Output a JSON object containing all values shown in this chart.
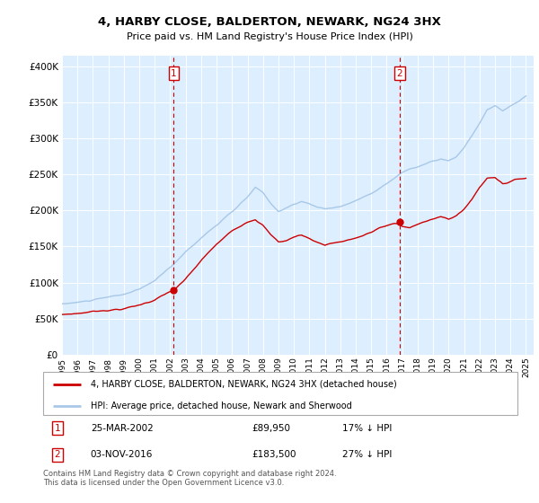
{
  "title": "4, HARBY CLOSE, BALDERTON, NEWARK, NG24 3HX",
  "subtitle": "Price paid vs. HM Land Registry's House Price Index (HPI)",
  "ylabel_ticks": [
    "£0",
    "£50K",
    "£100K",
    "£150K",
    "£200K",
    "£250K",
    "£300K",
    "£350K",
    "£400K"
  ],
  "ytick_values": [
    0,
    50000,
    100000,
    150000,
    200000,
    250000,
    300000,
    350000,
    400000
  ],
  "ylim": [
    0,
    415000
  ],
  "xlim_start": 1995.0,
  "xlim_end": 2025.5,
  "hpi_color": "#a8c8e8",
  "price_color": "#cc0000",
  "marker1_date": 2002.23,
  "marker1_label": "1",
  "marker1_price": 89950,
  "marker2_date": 2016.84,
  "marker2_label": "2",
  "marker2_price": 183500,
  "legend_line1": "4, HARBY CLOSE, BALDERTON, NEWARK, NG24 3HX (detached house)",
  "legend_line2": "HPI: Average price, detached house, Newark and Sherwood",
  "table_row1": [
    "1",
    "25-MAR-2002",
    "£89,950",
    "17% ↓ HPI"
  ],
  "table_row2": [
    "2",
    "03-NOV-2016",
    "£183,500",
    "27% ↓ HPI"
  ],
  "footnote": "Contains HM Land Registry data © Crown copyright and database right 2024.\nThis data is licensed under the Open Government Licence v3.0.",
  "background_color": "#ffffff",
  "plot_bg_color": "#ddeeff",
  "grid_color": "#ffffff",
  "hpi_anchors": [
    [
      1995.0,
      70000
    ],
    [
      1996.0,
      72000
    ],
    [
      1997.0,
      75000
    ],
    [
      1998.0,
      78000
    ],
    [
      1999.0,
      82000
    ],
    [
      2000.0,
      88000
    ],
    [
      2001.0,
      100000
    ],
    [
      2002.0,
      118000
    ],
    [
      2003.0,
      140000
    ],
    [
      2004.0,
      160000
    ],
    [
      2005.0,
      178000
    ],
    [
      2006.0,
      195000
    ],
    [
      2007.0,
      215000
    ],
    [
      2007.5,
      228000
    ],
    [
      2008.0,
      220000
    ],
    [
      2008.5,
      205000
    ],
    [
      2009.0,
      195000
    ],
    [
      2009.5,
      200000
    ],
    [
      2010.0,
      205000
    ],
    [
      2010.5,
      208000
    ],
    [
      2011.0,
      205000
    ],
    [
      2011.5,
      200000
    ],
    [
      2012.0,
      198000
    ],
    [
      2012.5,
      200000
    ],
    [
      2013.0,
      202000
    ],
    [
      2013.5,
      205000
    ],
    [
      2014.0,
      210000
    ],
    [
      2014.5,
      215000
    ],
    [
      2015.0,
      220000
    ],
    [
      2015.5,
      228000
    ],
    [
      2016.0,
      235000
    ],
    [
      2016.5,
      242000
    ],
    [
      2017.0,
      250000
    ],
    [
      2017.5,
      255000
    ],
    [
      2018.0,
      258000
    ],
    [
      2018.5,
      262000
    ],
    [
      2019.0,
      265000
    ],
    [
      2019.5,
      268000
    ],
    [
      2020.0,
      265000
    ],
    [
      2020.5,
      270000
    ],
    [
      2021.0,
      282000
    ],
    [
      2021.5,
      298000
    ],
    [
      2022.0,
      315000
    ],
    [
      2022.5,
      335000
    ],
    [
      2023.0,
      340000
    ],
    [
      2023.5,
      332000
    ],
    [
      2024.0,
      338000
    ],
    [
      2024.5,
      345000
    ],
    [
      2025.0,
      352000
    ]
  ],
  "price_anchors": [
    [
      1995.0,
      55000
    ],
    [
      1996.0,
      57000
    ],
    [
      1997.0,
      60000
    ],
    [
      1998.0,
      63000
    ],
    [
      1999.0,
      65000
    ],
    [
      2000.0,
      70000
    ],
    [
      2001.0,
      78000
    ],
    [
      2002.0,
      89000
    ],
    [
      2002.23,
      89950
    ],
    [
      2003.0,
      105000
    ],
    [
      2004.0,
      130000
    ],
    [
      2005.0,
      152000
    ],
    [
      2006.0,
      170000
    ],
    [
      2007.0,
      185000
    ],
    [
      2007.5,
      190000
    ],
    [
      2008.0,
      182000
    ],
    [
      2008.5,
      168000
    ],
    [
      2009.0,
      158000
    ],
    [
      2009.5,
      160000
    ],
    [
      2010.0,
      165000
    ],
    [
      2010.5,
      168000
    ],
    [
      2011.0,
      163000
    ],
    [
      2011.5,
      158000
    ],
    [
      2012.0,
      155000
    ],
    [
      2012.5,
      158000
    ],
    [
      2013.0,
      160000
    ],
    [
      2013.5,
      162000
    ],
    [
      2014.0,
      165000
    ],
    [
      2014.5,
      168000
    ],
    [
      2015.0,
      172000
    ],
    [
      2015.5,
      178000
    ],
    [
      2016.0,
      182000
    ],
    [
      2016.5,
      185000
    ],
    [
      2016.84,
      183500
    ],
    [
      2017.0,
      180000
    ],
    [
      2017.5,
      178000
    ],
    [
      2018.0,
      182000
    ],
    [
      2018.5,
      188000
    ],
    [
      2019.0,
      192000
    ],
    [
      2019.5,
      195000
    ],
    [
      2020.0,
      190000
    ],
    [
      2020.5,
      195000
    ],
    [
      2021.0,
      205000
    ],
    [
      2021.5,
      218000
    ],
    [
      2022.0,
      235000
    ],
    [
      2022.5,
      248000
    ],
    [
      2023.0,
      250000
    ],
    [
      2023.5,
      242000
    ],
    [
      2024.0,
      245000
    ],
    [
      2024.5,
      248000
    ],
    [
      2025.0,
      250000
    ]
  ]
}
